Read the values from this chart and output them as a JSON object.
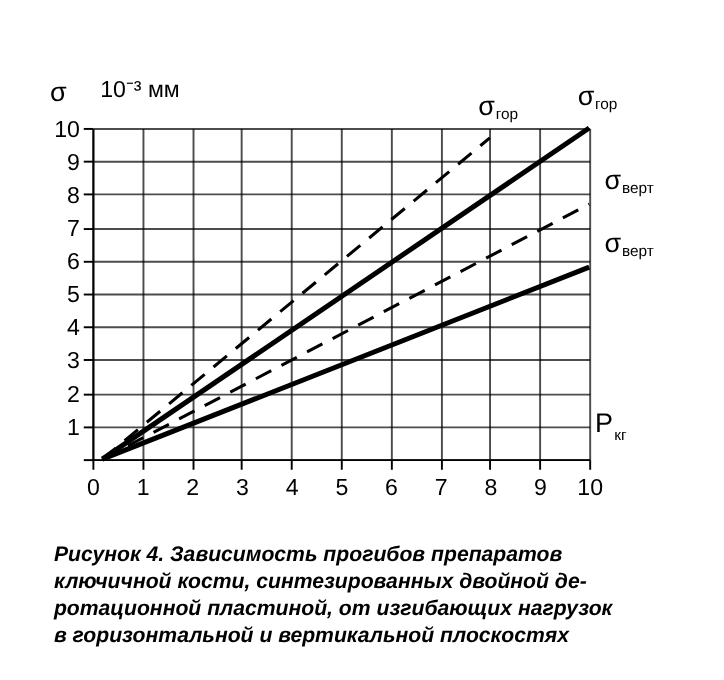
{
  "chart_data": {
    "type": "line",
    "ylabel": "σ",
    "xlabel": "P$_{кг}$",
    "annotations": [
      "10⁻³ мм",
      "Рисунок 4. Зависимость прогибов препаратов\nключичной кости, синтезированных двойной де-\nротационной пластиной, от изгибающих нагрузок\nв горизонтальной и вертикальной плоскостях"
    ],
    "series": [
      {
        "name": "σ$_{гор}$",
        "color": "#000000",
        "line_style": "dashed",
        "x": [
          0.2,
          8
        ],
        "values": [
          0,
          9.7
        ]
      },
      {
        "name": "σ$_{гор}$",
        "color": "#000000",
        "line_style": "solid",
        "x": [
          0.2,
          10
        ],
        "values": [
          0,
          10
        ]
      },
      {
        "name": "σ$_{верт}$",
        "color": "#000000",
        "line_style": "dashed",
        "x": [
          0.2,
          10
        ],
        "values": [
          0,
          7.7
        ]
      },
      {
        "name": "σ$_{верт}$",
        "color": "#000000",
        "line_style": "solid",
        "x": [
          0.2,
          10
        ],
        "values": [
          0,
          5.8
        ]
      }
    ],
    "xlim": [
      0,
      10
    ],
    "ylim": [
      0,
      10
    ],
    "xticks": [
      0,
      1,
      2,
      3,
      4,
      5,
      6,
      7,
      8,
      9,
      10
    ],
    "yticks": [
      {
        "value": 0,
        "label": null
      },
      1,
      2,
      3,
      4,
      5,
      6,
      7,
      8,
      9,
      10
    ],
    "grid": true
  }
}
